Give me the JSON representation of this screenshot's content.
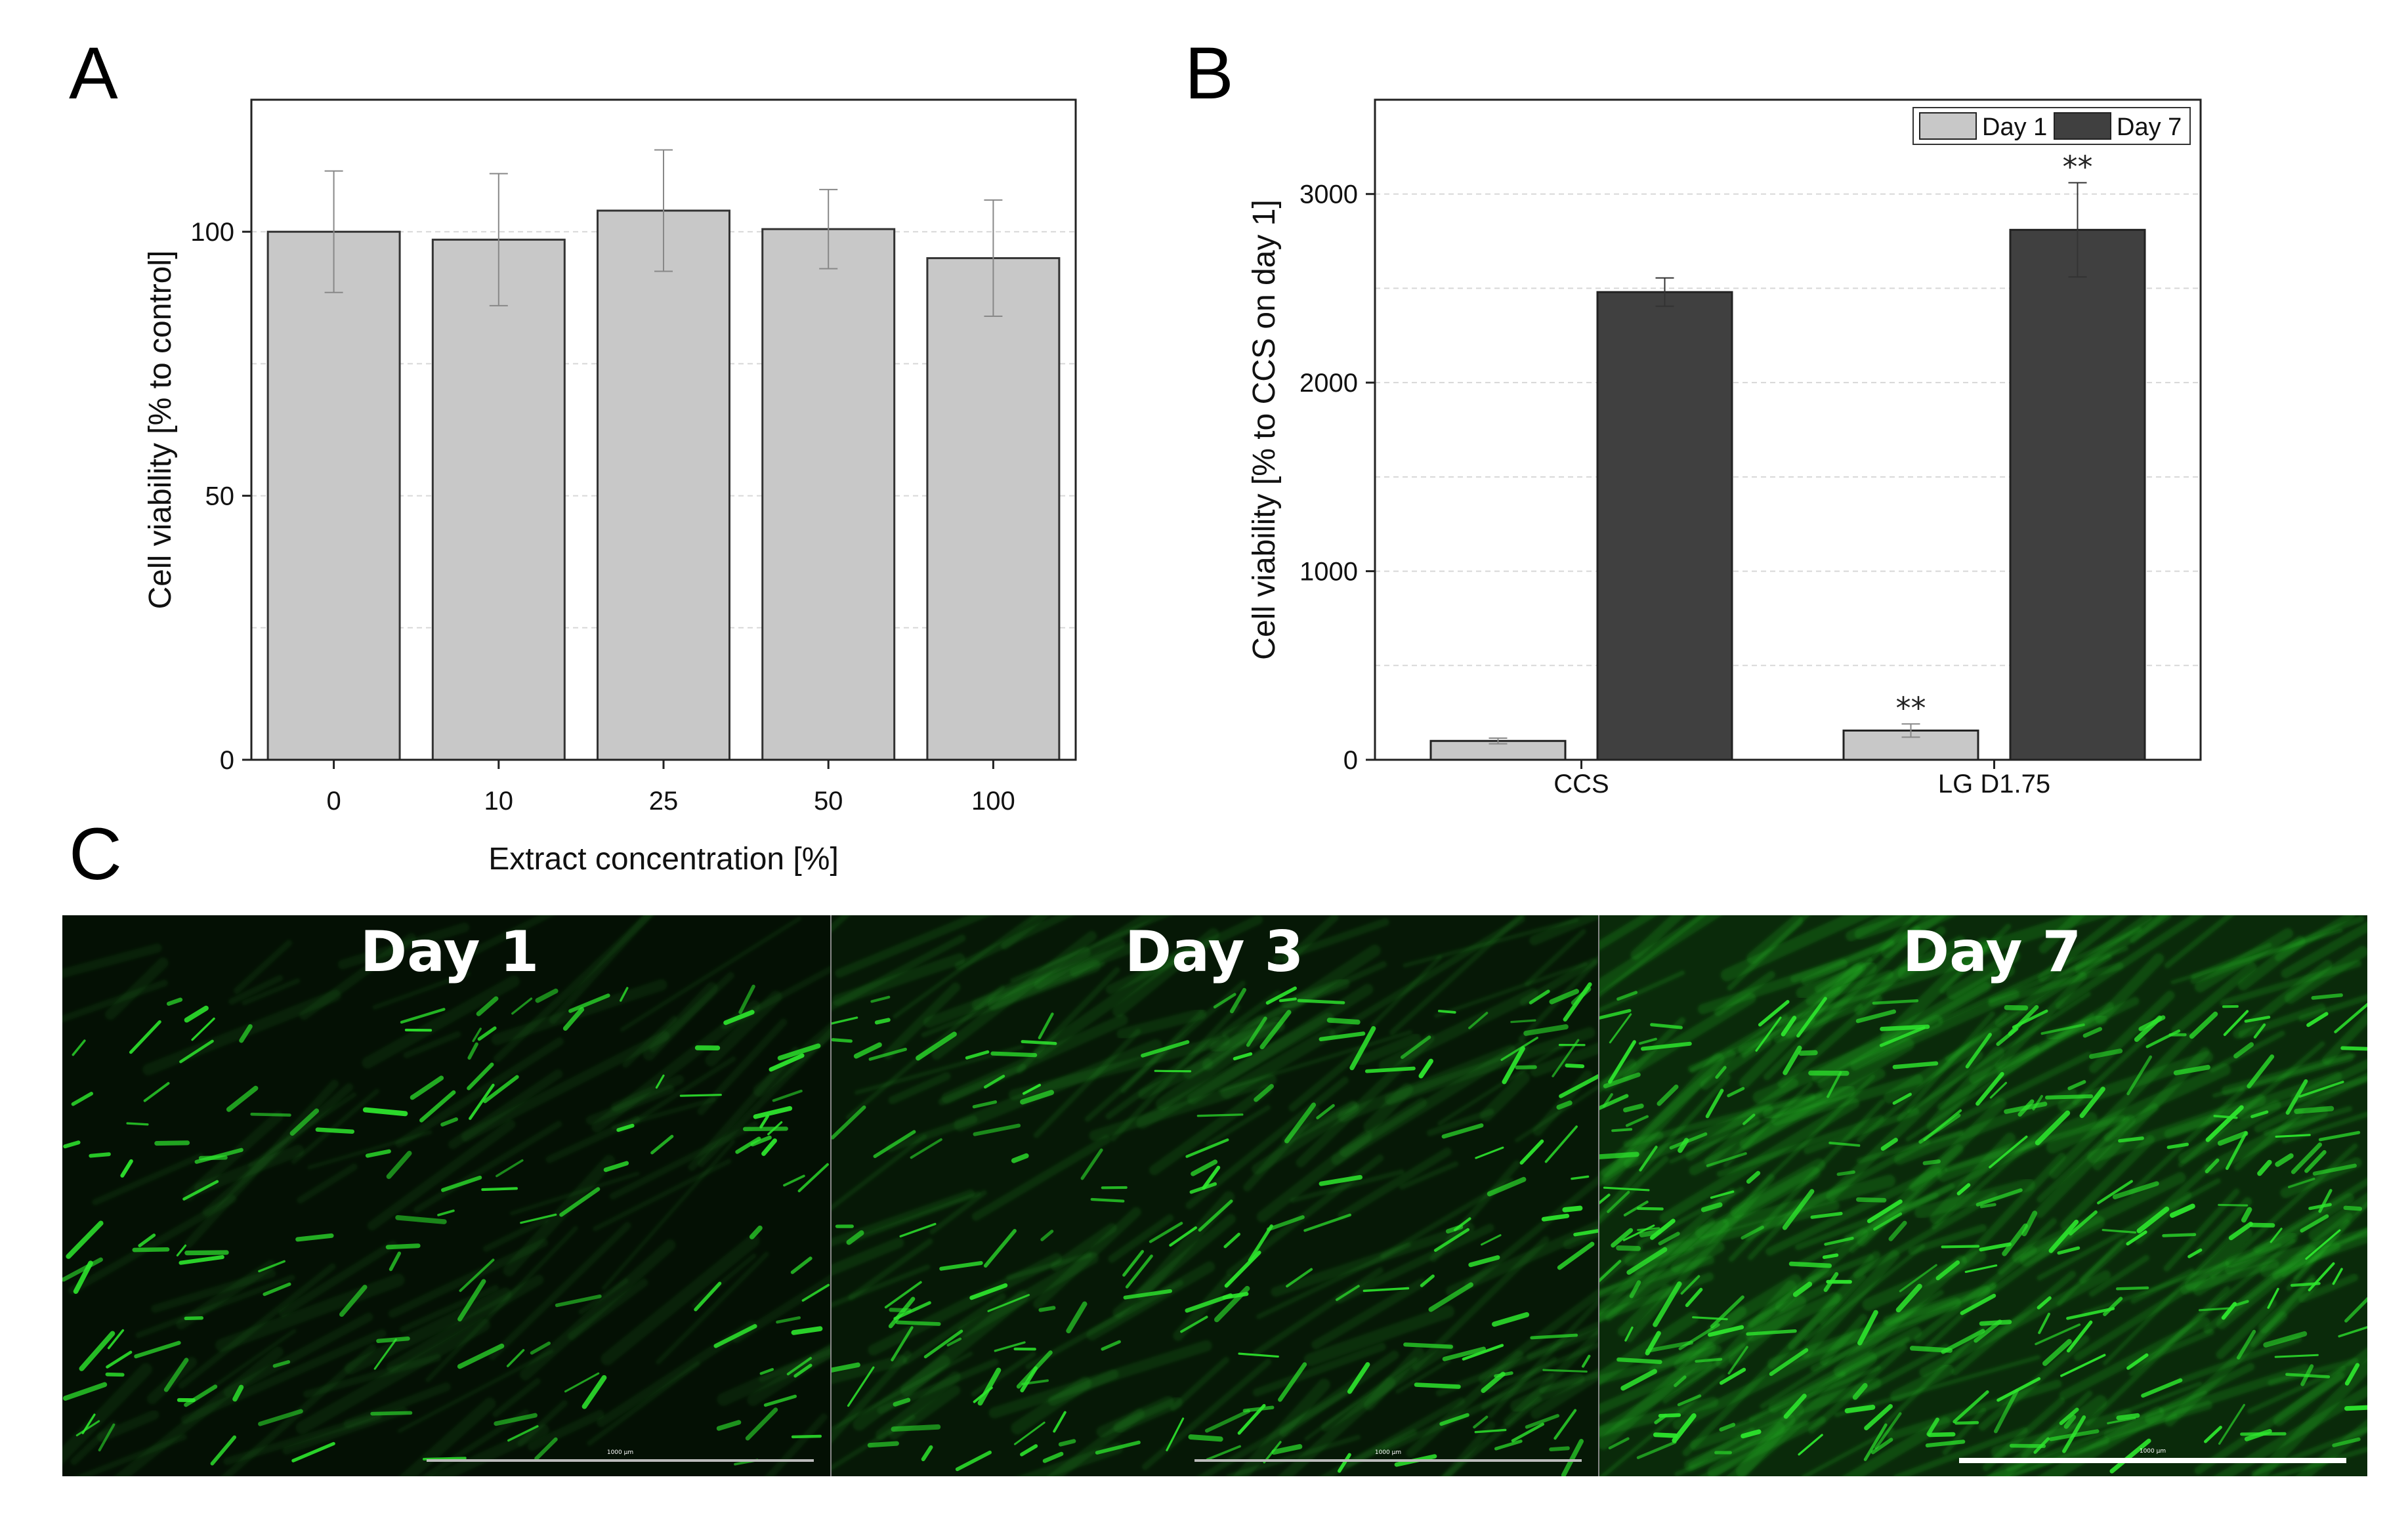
{
  "panels": {
    "a": "A",
    "b": "B",
    "c": "C"
  },
  "colors": {
    "bar_light": "#c8c8c8",
    "bar_dark": "#404040",
    "micrograph": "#2ee82e"
  },
  "chart_data": [
    {
      "panel": "A",
      "type": "bar",
      "categories": [
        "0",
        "10",
        "25",
        "50",
        "100"
      ],
      "values": [
        100,
        98.5,
        104,
        100.5,
        95
      ],
      "errors": [
        11.5,
        12.5,
        11.5,
        7.5,
        11
      ],
      "xlabel": "Extract concentration [%]",
      "ylabel": "Cell viability [% to control]",
      "ylim": [
        0,
        125
      ],
      "yticks": [
        "0",
        "50",
        "100"
      ],
      "grid": true
    },
    {
      "panel": "B",
      "type": "bar",
      "categories": [
        "CCS",
        "LG D1.75"
      ],
      "series": [
        {
          "name": "Day 1",
          "values": [
            100,
            155
          ],
          "errors": [
            15,
            35
          ],
          "marks": [
            "",
            "**"
          ]
        },
        {
          "name": "Day 7",
          "values": [
            2480,
            2810
          ],
          "errors": [
            75,
            250
          ],
          "marks": [
            "",
            "**"
          ]
        }
      ],
      "ylabel": "Cell viability [% to CCS on day 1]",
      "ylim": [
        0,
        3500
      ],
      "yticks": [
        "0",
        "1000",
        "2000",
        "3000"
      ],
      "grid": true,
      "legend": "top-right"
    }
  ],
  "micrographs": [
    {
      "title": "Day 1",
      "scale_label": "1000 µm",
      "density": 0.25
    },
    {
      "title": "Day 3",
      "scale_label": "1000 µm",
      "density": 0.5
    },
    {
      "title": "Day 7",
      "scale_label": "1000 µm",
      "density": 1.0
    }
  ]
}
